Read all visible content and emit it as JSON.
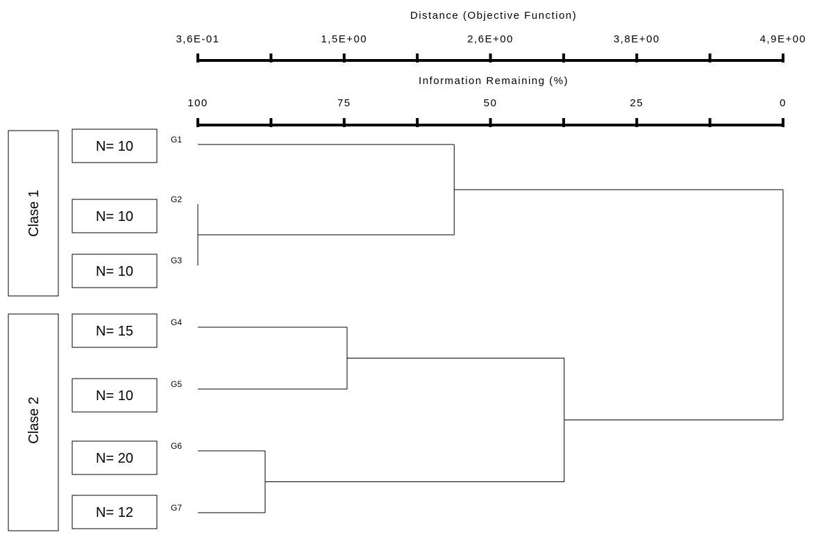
{
  "distance_axis": {
    "title": "Distance (Objective Function)",
    "ticks": [
      "3,6E-01",
      "",
      "1,5E+00",
      "",
      "2,6E+00",
      "",
      "3,8E+00",
      "",
      "4,9E+00"
    ]
  },
  "info_axis": {
    "title": "Information Remaining (%)",
    "ticks": [
      "100",
      "",
      "75",
      "",
      "50",
      "",
      "25",
      "",
      "0"
    ]
  },
  "classes": [
    {
      "label": "Clase 1"
    },
    {
      "label": "Clase 2"
    }
  ],
  "leaves": [
    {
      "label": "G1",
      "n": "N= 10"
    },
    {
      "label": "G2",
      "n": "N= 10"
    },
    {
      "label": "G3",
      "n": "N= 10"
    },
    {
      "label": "G4",
      "n": "N= 15"
    },
    {
      "label": "G5",
      "n": "N= 10"
    },
    {
      "label": "G6",
      "n": "N= 20"
    },
    {
      "label": "G7",
      "n": "N= 12"
    }
  ],
  "merges": [
    {
      "members": [
        "G2",
        "G3"
      ],
      "info_remaining": 100
    },
    {
      "members": [
        "G6",
        "G7"
      ],
      "info_remaining": 88.5
    },
    {
      "members": [
        "G4",
        "G5"
      ],
      "info_remaining": 74.5
    },
    {
      "members": [
        "G1",
        "G2",
        "G3"
      ],
      "info_remaining": 56.2
    },
    {
      "members": [
        "G4",
        "G5",
        "G6",
        "G7"
      ],
      "info_remaining": 37.4
    },
    {
      "members": [
        "G1",
        "G2",
        "G3",
        "G4",
        "G5",
        "G6",
        "G7"
      ],
      "info_remaining": 0
    }
  ]
}
